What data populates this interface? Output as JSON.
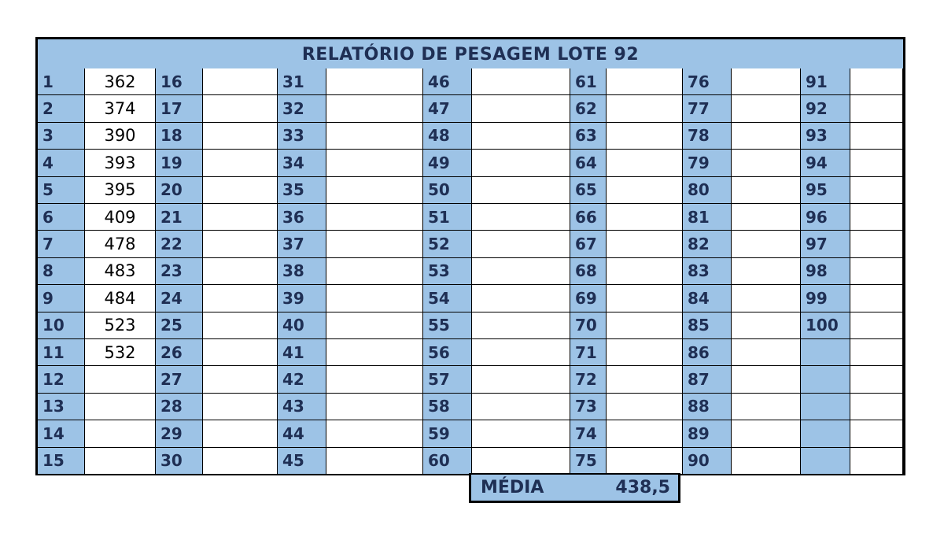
{
  "title": "RELATÓRIO DE PESAGEM LOTE 92",
  "columns": [
    {
      "numbers": [
        "1",
        "2",
        "3",
        "4",
        "5",
        "6",
        "7",
        "8",
        "9",
        "10",
        "11",
        "12",
        "13",
        "14",
        "15"
      ],
      "values": [
        "362",
        "374",
        "390",
        "393",
        "395",
        "409",
        "478",
        "483",
        "484",
        "523",
        "532",
        "",
        "",
        "",
        ""
      ]
    },
    {
      "numbers": [
        "16",
        "17",
        "18",
        "19",
        "20",
        "21",
        "22",
        "23",
        "24",
        "25",
        "26",
        "27",
        "28",
        "29",
        "30"
      ],
      "values": [
        "",
        "",
        "",
        "",
        "",
        "",
        "",
        "",
        "",
        "",
        "",
        "",
        "",
        "",
        ""
      ]
    },
    {
      "numbers": [
        "31",
        "32",
        "33",
        "34",
        "35",
        "36",
        "37",
        "38",
        "39",
        "40",
        "41",
        "42",
        "43",
        "44",
        "45"
      ],
      "values": [
        "",
        "",
        "",
        "",
        "",
        "",
        "",
        "",
        "",
        "",
        "",
        "",
        "",
        "",
        ""
      ]
    },
    {
      "numbers": [
        "46",
        "47",
        "48",
        "49",
        "50",
        "51",
        "52",
        "53",
        "54",
        "55",
        "56",
        "57",
        "58",
        "59",
        "60"
      ],
      "values": [
        "",
        "",
        "",
        "",
        "",
        "",
        "",
        "",
        "",
        "",
        "",
        "",
        "",
        "",
        ""
      ]
    },
    {
      "numbers": [
        "61",
        "62",
        "63",
        "64",
        "65",
        "66",
        "67",
        "68",
        "69",
        "70",
        "71",
        "72",
        "73",
        "74",
        "75"
      ],
      "values": [
        "",
        "",
        "",
        "",
        "",
        "",
        "",
        "",
        "",
        "",
        "",
        "",
        "",
        "",
        ""
      ]
    },
    {
      "numbers": [
        "76",
        "77",
        "78",
        "79",
        "80",
        "81",
        "82",
        "83",
        "84",
        "85",
        "86",
        "87",
        "88",
        "89",
        "90"
      ],
      "values": [
        "",
        "",
        "",
        "",
        "",
        "",
        "",
        "",
        "",
        "",
        "",
        "",
        "",
        "",
        ""
      ]
    },
    {
      "numbers": [
        "91",
        "92",
        "93",
        "94",
        "95",
        "96",
        "97",
        "98",
        "99",
        "100",
        "",
        "",
        "",
        "",
        ""
      ],
      "values": [
        "",
        "",
        "",
        "",
        "",
        "",
        "",
        "",
        "",
        "",
        "",
        "",
        "",
        "",
        ""
      ]
    }
  ],
  "summary": {
    "label": "MÉDIA",
    "value": "438,5"
  }
}
